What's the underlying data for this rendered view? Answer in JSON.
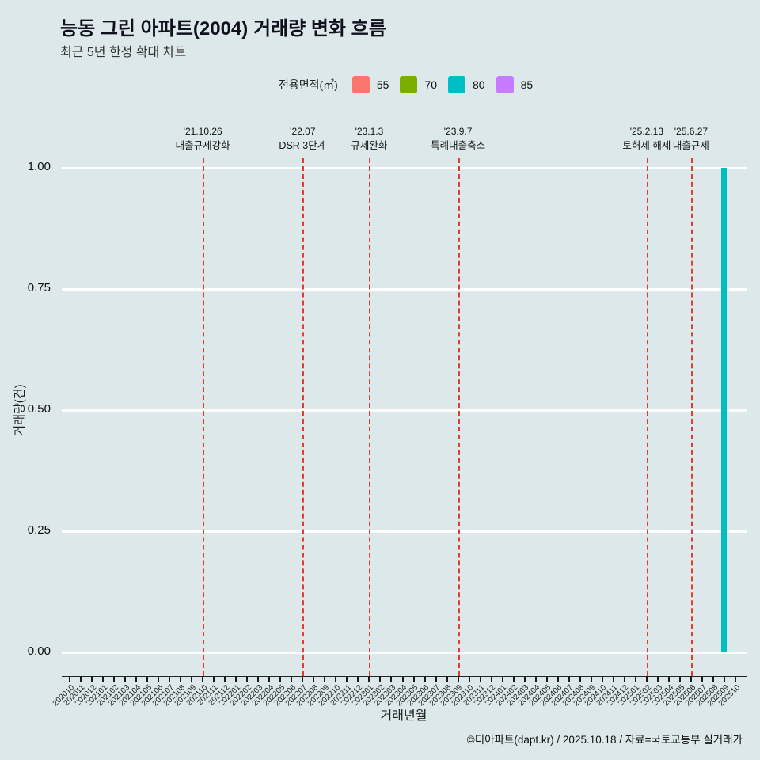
{
  "header": {
    "title": "능동 그린 아파트(2004) 거래량 변화 흐름",
    "subtitle": "최근 5년 한정 확대 차트"
  },
  "legend": {
    "label": "전용면적(㎡)",
    "items": [
      {
        "label": "55",
        "color": "#f8766d"
      },
      {
        "label": "70",
        "color": "#7cae00"
      },
      {
        "label": "80",
        "color": "#00bfc4"
      },
      {
        "label": "85",
        "color": "#c77cff"
      }
    ]
  },
  "chart_data": {
    "type": "bar",
    "title": "능동 그린 아파트(2004) 거래량 변화 흐름",
    "subtitle": "최근 5년 한정 확대 차트",
    "xlabel": "거래년월",
    "ylabel": "거래량(건)",
    "ylim": [
      0,
      1
    ],
    "grid": "on",
    "legend_position": "top",
    "background": "#dde8ea",
    "annotation_line_color": "#e33b33",
    "yticks": [
      {
        "value": 1,
        "label": "1.00"
      },
      {
        "value": 0.75,
        "label": "0.75"
      },
      {
        "value": 0.5,
        "label": "0.50"
      },
      {
        "value": 0.25,
        "label": "0.25"
      },
      {
        "value": 0,
        "label": "0.00"
      }
    ],
    "categories": [
      "202010",
      "202011",
      "202012",
      "202101",
      "202102",
      "202103",
      "202104",
      "202105",
      "202106",
      "202107",
      "202108",
      "202109",
      "202110",
      "202111",
      "202112",
      "202201",
      "202202",
      "202203",
      "202204",
      "202205",
      "202206",
      "202207",
      "202208",
      "202209",
      "202210",
      "202211",
      "202212",
      "202301",
      "202302",
      "202303",
      "202304",
      "202305",
      "202306",
      "202307",
      "202308",
      "202309",
      "202310",
      "202311",
      "202312",
      "202401",
      "202402",
      "202403",
      "202404",
      "202405",
      "202406",
      "202407",
      "202408",
      "202409",
      "202410",
      "202411",
      "202412",
      "202501",
      "202502",
      "202503",
      "202504",
      "202505",
      "202506",
      "202507",
      "202508",
      "202509",
      "202510"
    ],
    "series": [
      {
        "name": "55",
        "color": "#f8766d",
        "points": []
      },
      {
        "name": "70",
        "color": "#7cae00",
        "points": []
      },
      {
        "name": "80",
        "color": "#00bfc4",
        "points": [
          {
            "x": "202509",
            "y": 1
          }
        ]
      },
      {
        "name": "85",
        "color": "#c77cff",
        "points": []
      }
    ],
    "annotations": [
      {
        "x": "202110",
        "date": "'21.10.26",
        "label": "대출규제강화"
      },
      {
        "x": "202207",
        "date": "'22.07",
        "label": "DSR 3단계"
      },
      {
        "x": "202301",
        "date": "'23.1.3",
        "label": "규제완화"
      },
      {
        "x": "202309",
        "date": "'23.9.7",
        "label": "특례대출축소"
      },
      {
        "x": "202502",
        "date": "'25.2.13",
        "label": "토허제 해제"
      },
      {
        "x": "202506",
        "date": "'25.6.27",
        "label": "대출규제"
      }
    ]
  },
  "footer": {
    "credit": "©디아파트(dapt.kr) / 2025.10.18 / 자료=국토교통부 실거래가"
  }
}
